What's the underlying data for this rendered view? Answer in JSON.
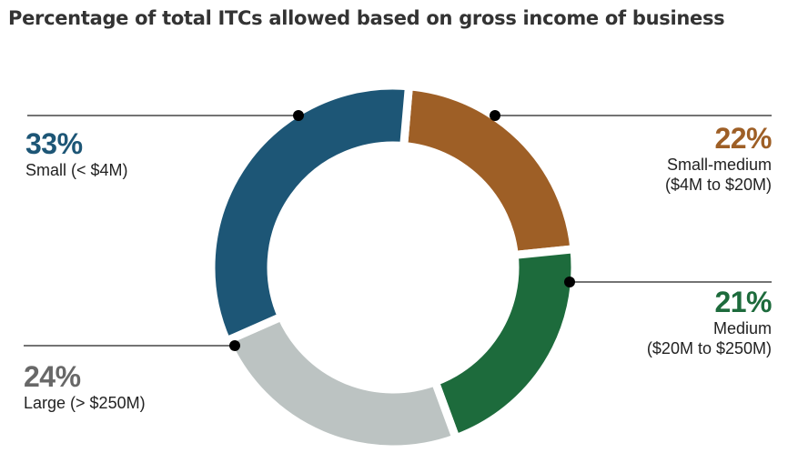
{
  "title": "Percentage of total ITCs allowed based on gross income of business",
  "chart_data": {
    "type": "pie",
    "title": "Percentage of total ITCs allowed based on gross income of business",
    "slices": [
      {
        "pct_label": "22%",
        "value": 22,
        "label_line1": "Small-medium",
        "label_line2": "($4M to $20M)",
        "color": "#9e5f26"
      },
      {
        "pct_label": "21%",
        "value": 21,
        "label_line1": "Medium",
        "label_line2": "($20M to $250M)",
        "color": "#1d6b3c"
      },
      {
        "pct_label": "24%",
        "value": 24,
        "label_line1": "Large (> $250M)",
        "label_line2": "",
        "color": "#bcc3c2"
      },
      {
        "pct_label": "33%",
        "value": 33,
        "label_line1": "Small (< $4M)",
        "label_line2": "",
        "color": "#1d5676"
      }
    ],
    "donut": true,
    "start_angle_deg": 5,
    "direction": "clockwise"
  }
}
